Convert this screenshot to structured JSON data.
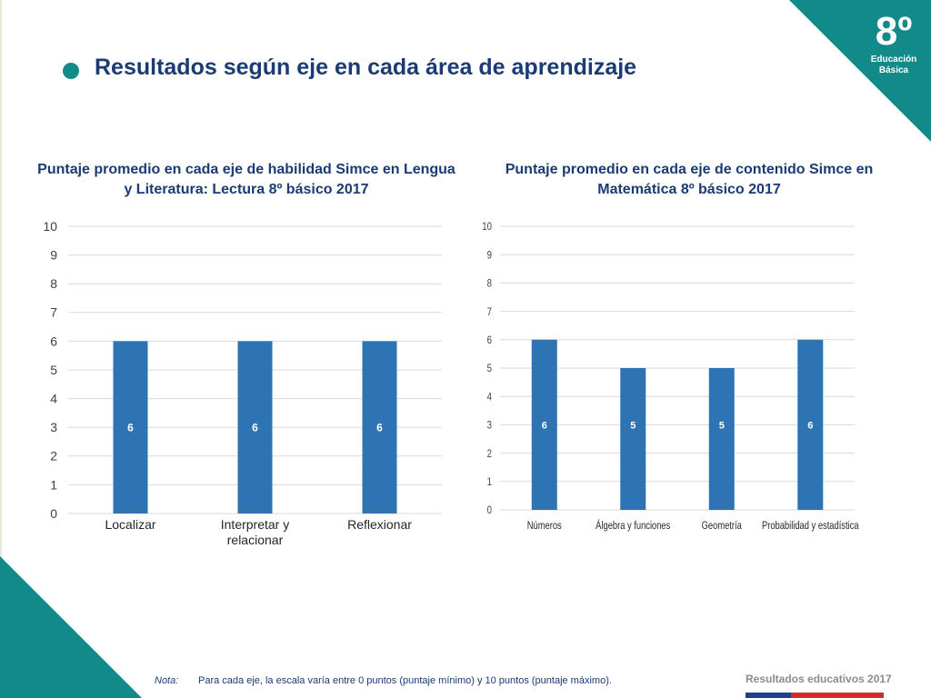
{
  "header": {
    "title": "Resultados según eje en cada área de aprendizaje",
    "grade": "8º",
    "grade_sub_1": "Educación",
    "grade_sub_2": "Básica",
    "accent": "#138a8a",
    "title_color": "#1a3b73"
  },
  "chart_data": [
    {
      "type": "bar",
      "title": "Puntaje promedio en cada eje de habilidad Simce en Lengua y Literatura: Lectura 8º básico 2017",
      "categories": [
        [
          "Localizar"
        ],
        [
          "Interpretar y",
          "relacionar"
        ],
        [
          "Reflexionar"
        ]
      ],
      "values": [
        6,
        6,
        6
      ],
      "data_labels": [
        "6",
        "6",
        "6"
      ],
      "ylim": [
        0,
        10
      ],
      "yticks": [
        "0",
        "1",
        "2",
        "3",
        "4",
        "5",
        "6",
        "7",
        "8",
        "9",
        "10"
      ],
      "grid": true,
      "bar_color": "#2e74b5"
    },
    {
      "type": "bar",
      "title": "Puntaje promedio en cada eje de contenido Simce en Matemática 8º básico 2017",
      "categories": [
        [
          "Números"
        ],
        [
          "Álgebra y funciones"
        ],
        [
          "Geometría"
        ],
        [
          "Probabilidad y estadística"
        ]
      ],
      "values": [
        6,
        5,
        5,
        6
      ],
      "data_labels": [
        "6",
        "5",
        "5",
        "6"
      ],
      "ylim": [
        0,
        10
      ],
      "yticks": [
        "0",
        "1",
        "2",
        "3",
        "4",
        "5",
        "6",
        "7",
        "8",
        "9",
        "10"
      ],
      "grid": true,
      "bar_color": "#2e74b5"
    }
  ],
  "note": {
    "label": "Nota:",
    "text": "Para cada eje, la escala varía entre 0 puntos (puntaje mínimo) y 10 puntos (puntaje máximo)."
  },
  "footer": {
    "text": "Resultados educativos 2017"
  }
}
